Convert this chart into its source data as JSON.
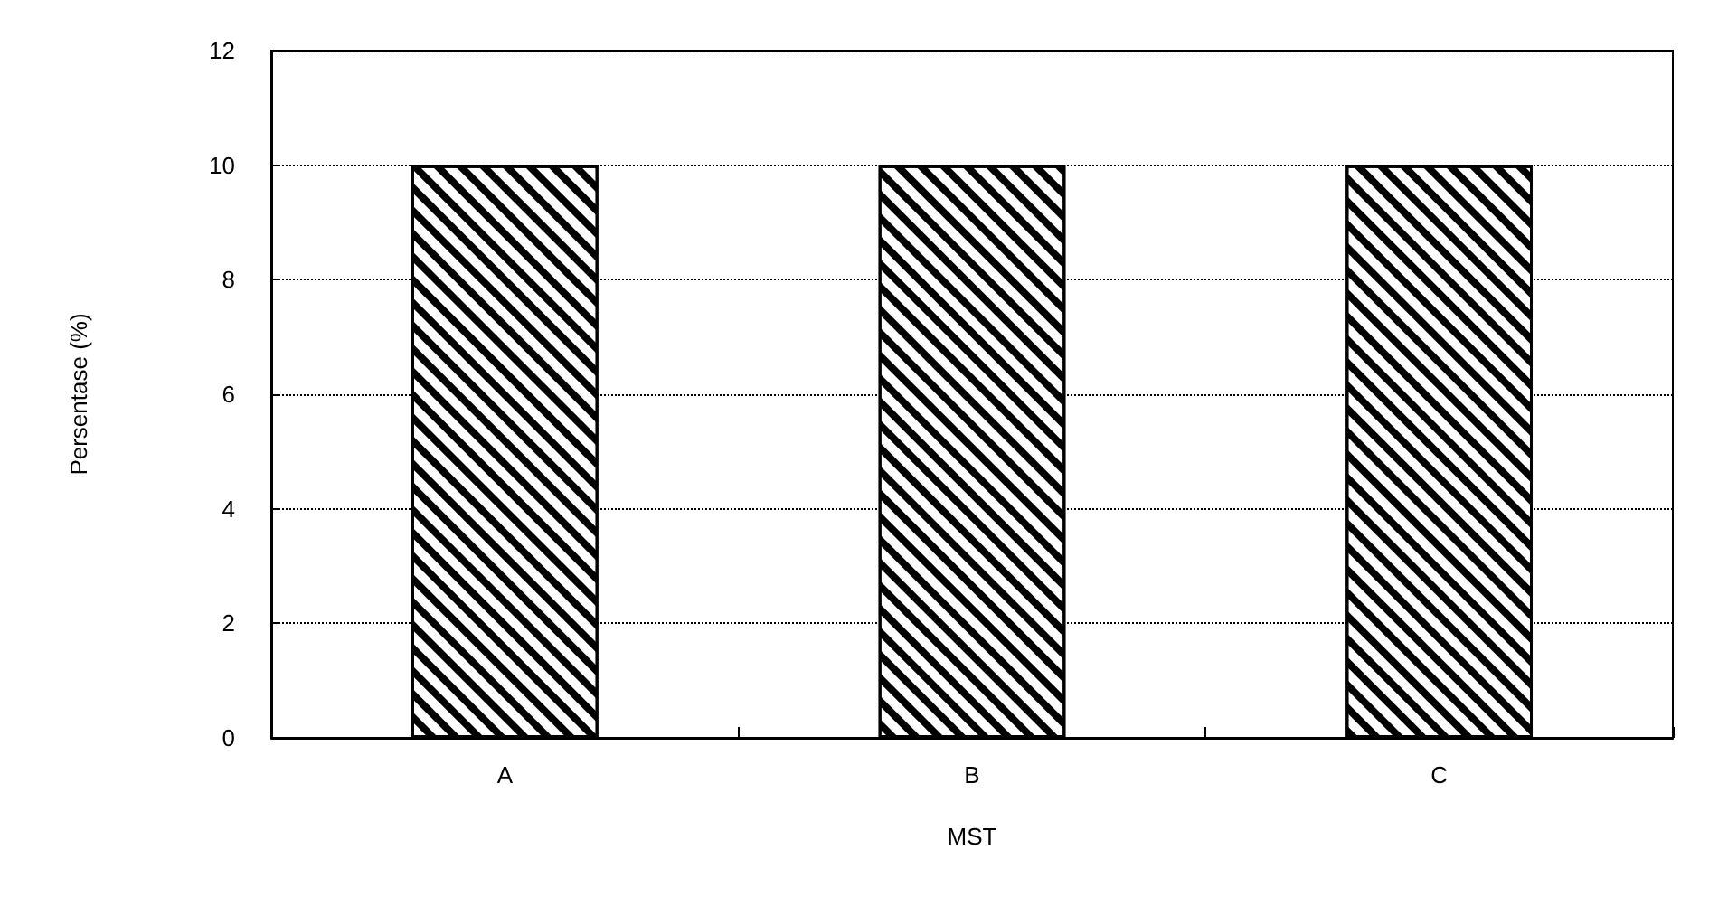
{
  "chart_data": {
    "type": "bar",
    "xlabel": "MST",
    "ylabel": "Persentase (%)",
    "categories": [
      "A",
      "B",
      "C"
    ],
    "series": [
      {
        "color": "#000000",
        "values": [
          10,
          10,
          10
        ]
      }
    ],
    "ylim": [
      0,
      12
    ],
    "yticks": [
      0,
      2,
      4,
      6,
      8,
      10,
      12
    ],
    "grid": "y",
    "line_style": "dotted"
  }
}
